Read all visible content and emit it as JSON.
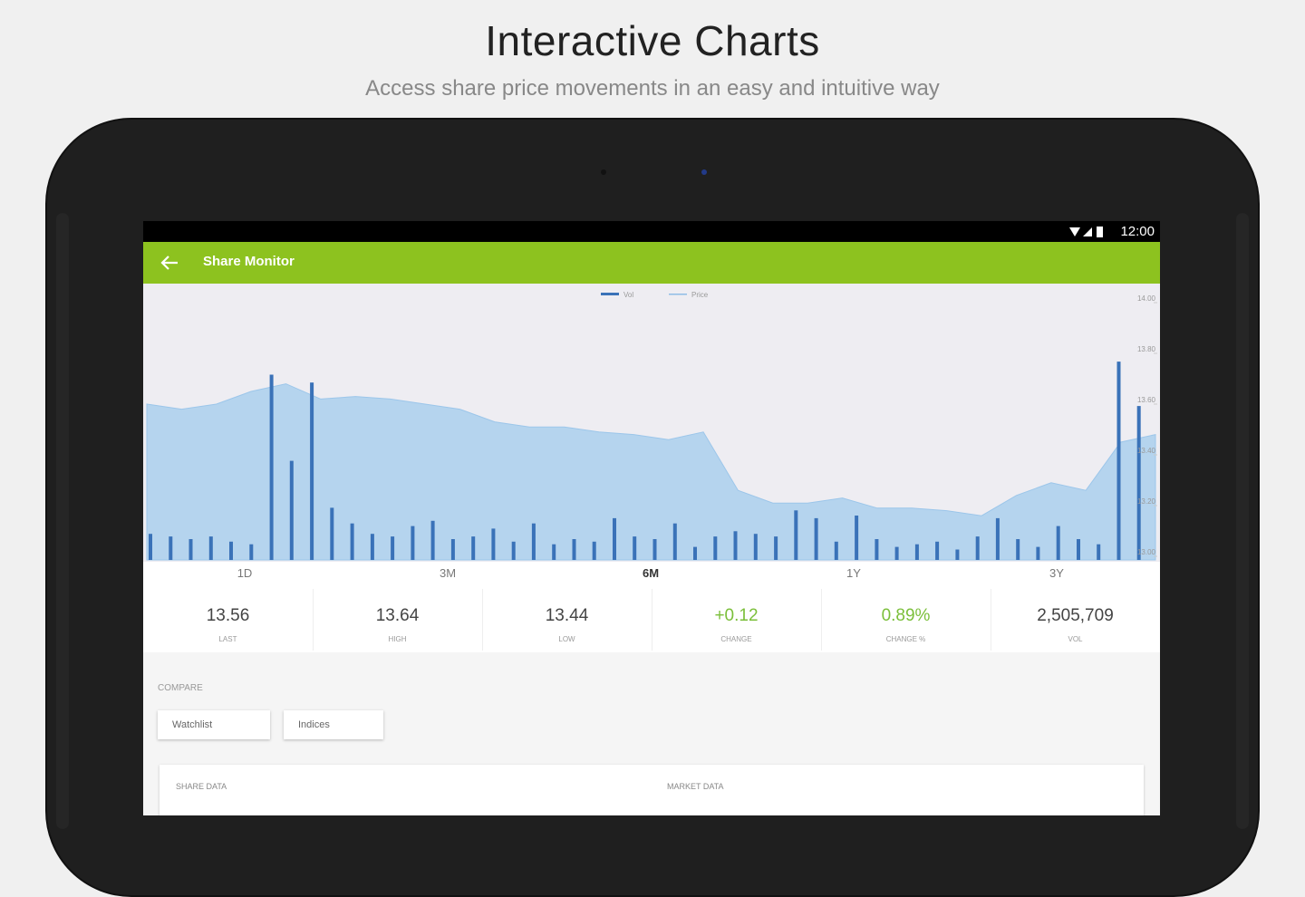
{
  "header": {
    "title": "Interactive Charts",
    "subtitle": "Access share price movements in an easy and intuitive way"
  },
  "status_bar": {
    "time": "12:00"
  },
  "app_bar": {
    "title": "Share Monitor"
  },
  "chart": {
    "legend": [
      "Vol",
      "Price"
    ],
    "price": {
      "color": "#b5d4ee",
      "values": [
        13.6,
        13.58,
        13.6,
        13.65,
        13.68,
        13.62,
        13.63,
        13.62,
        13.6,
        13.58,
        13.53,
        13.51,
        13.51,
        13.49,
        13.48,
        13.46,
        13.49,
        13.26,
        13.21,
        13.21,
        13.23,
        13.19,
        13.19,
        13.18,
        13.16,
        13.24,
        13.29,
        13.26,
        13.45,
        13.48
      ],
      "ylim": [
        13.0,
        14.0
      ],
      "yticks": [
        {
          "value": 14.0,
          "label": "14.00"
        },
        {
          "value": 13.8,
          "label": "13.80"
        },
        {
          "value": 13.6,
          "label": "13.60"
        },
        {
          "value": 13.4,
          "label": "13.40"
        },
        {
          "value": 13.2,
          "label": "13.20"
        },
        {
          "value": 13.0,
          "label": "13.00"
        }
      ]
    },
    "volume": {
      "color": "#3a72b8",
      "values": [
        1.0,
        0.9,
        0.8,
        0.9,
        0.7,
        0.6,
        7.1,
        3.8,
        6.8,
        2.0,
        1.4,
        1.0,
        0.9,
        1.3,
        1.5,
        0.8,
        0.9,
        1.2,
        0.7,
        1.4,
        0.6,
        0.8,
        0.7,
        1.6,
        0.9,
        0.8,
        1.4,
        0.5,
        0.9,
        1.1,
        1.0,
        0.9,
        1.9,
        1.6,
        0.7,
        1.7,
        0.8,
        0.5,
        0.6,
        0.7,
        0.4,
        0.9,
        1.6,
        0.8,
        0.5,
        1.3,
        0.8,
        0.6,
        7.6,
        5.9
      ],
      "ylim": [
        0,
        10
      ]
    }
  },
  "range_tabs": [
    "1D",
    "3M",
    "6M",
    "1Y",
    "3Y"
  ],
  "selected_tab": 2,
  "stats": [
    {
      "value": "13.56",
      "label": "LAST"
    },
    {
      "value": "13.64",
      "label": "HIGH"
    },
    {
      "value": "13.44",
      "label": "LOW"
    },
    {
      "value": "+0.12",
      "label": "CHANGE",
      "positive": true
    },
    {
      "value": "0.89%",
      "label": "CHANGE %",
      "positive": true
    },
    {
      "value": "2,505,709",
      "label": "VOL"
    }
  ],
  "compare": {
    "label": "COMPARE",
    "buttons": [
      "Watchlist",
      "Indices"
    ]
  },
  "card": {
    "headers": [
      "SHARE DATA",
      "MARKET DATA"
    ]
  }
}
